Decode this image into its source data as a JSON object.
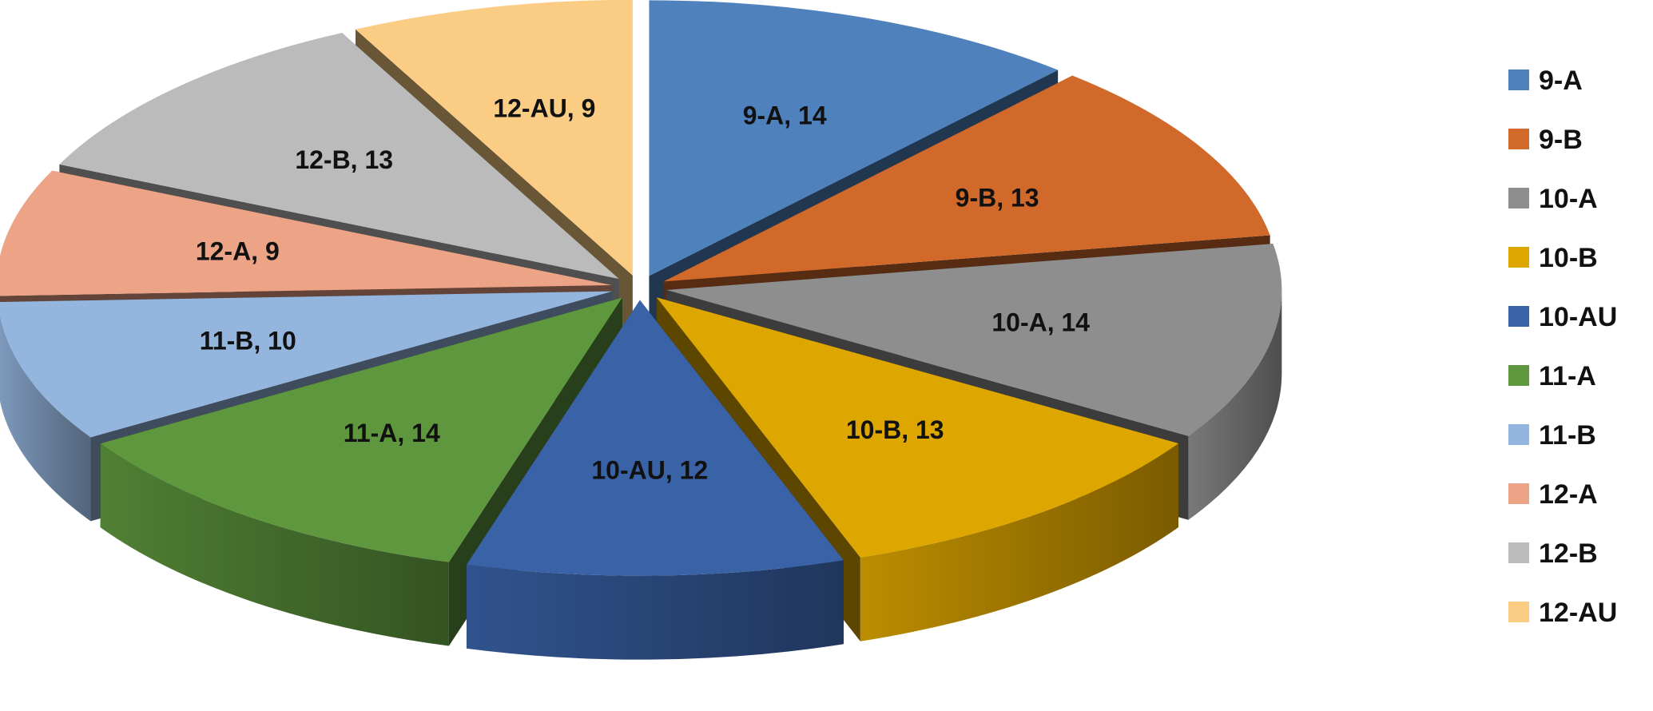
{
  "chart_data": {
    "type": "pie",
    "style": "3d-exploded",
    "title": "",
    "legend_position": "right",
    "slices": [
      {
        "label": "9-A",
        "value": 14,
        "color": "#4F81BD"
      },
      {
        "label": "9-B",
        "value": 13,
        "color": "#D0692A"
      },
      {
        "label": "10-A",
        "value": 14,
        "color": "#8E8E8E"
      },
      {
        "label": "10-B",
        "value": 13,
        "color": "#DDA600"
      },
      {
        "label": "10-AU",
        "value": 12,
        "color": "#3A62A7"
      },
      {
        "label": "11-A",
        "value": 14,
        "color": "#5E973D"
      },
      {
        "label": "11-B",
        "value": 10,
        "color": "#94B5DD"
      },
      {
        "label": "12-A",
        "value": 9,
        "color": "#EDA386"
      },
      {
        "label": "12-B",
        "value": 13,
        "color": "#BBBBBB"
      },
      {
        "label": "12-AU",
        "value": 9,
        "color": "#FBCD84"
      }
    ],
    "data_labels": [
      "9-A, 14",
      "9-B, 13",
      "10-A, 14",
      "10-B, 13",
      "10-AU, 12",
      "11-A, 14",
      "11-B, 10",
      "12-A, 9",
      "12-B, 13",
      "12-AU, 9"
    ]
  }
}
